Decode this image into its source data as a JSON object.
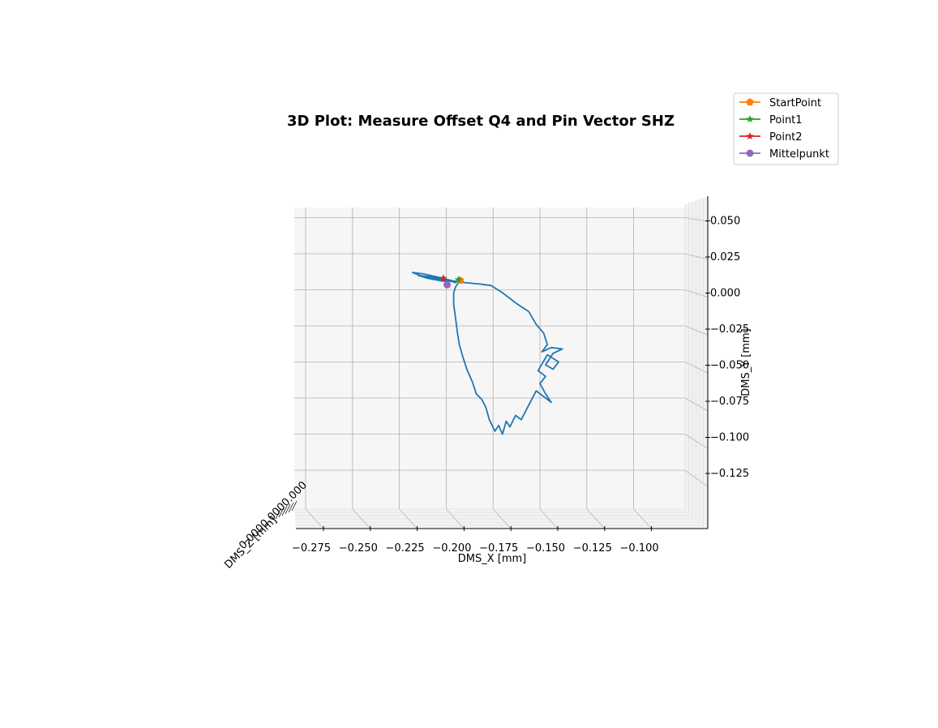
{
  "chart_data": {
    "type": "line",
    "projection": "3d",
    "title": "3D Plot: Measure Offset Q4 and Pin Vector SHZ",
    "xlabel": "DMS_X [mm]",
    "ylabel": "DMS_Y [mm]",
    "zlabel": "DMS_Z [mm]",
    "xlim": [
      -0.28,
      -0.08
    ],
    "ylim": [
      -0.145,
      0.055
    ],
    "x_ticks": [
      -0.275,
      -0.25,
      -0.225,
      -0.2,
      -0.175,
      -0.15,
      -0.125,
      -0.1
    ],
    "x_tick_labels": [
      "−0.275",
      "−0.250",
      "−0.225",
      "−0.200",
      "−0.175",
      "−0.150",
      "−0.125",
      "−0.100"
    ],
    "y_ticks": [
      0.05,
      0.025,
      0.0,
      -0.025,
      -0.05,
      -0.075,
      -0.1,
      -0.125
    ],
    "y_tick_labels": [
      "0.050",
      "0.025",
      "0.000",
      "−0.025",
      "−0.050",
      "−0.075",
      "−0.100",
      "−0.125"
    ],
    "grid": true,
    "legend_position": "top-right",
    "series": [
      {
        "name": "",
        "color": "#1f77b4",
        "x": [
          -0.196,
          -0.205,
          -0.212,
          -0.218,
          -0.214,
          -0.206,
          -0.198,
          -0.194,
          -0.19,
          -0.182,
          -0.176,
          -0.17,
          -0.166,
          -0.162,
          -0.156,
          -0.152,
          -0.148,
          -0.146,
          -0.149,
          -0.144,
          -0.138,
          -0.143,
          -0.147,
          -0.143,
          -0.14,
          -0.146,
          -0.151,
          -0.147,
          -0.15,
          -0.147,
          -0.144,
          -0.152,
          -0.158,
          -0.156,
          -0.16,
          -0.163,
          -0.166,
          -0.168,
          -0.17,
          -0.172,
          -0.174,
          -0.177,
          -0.179,
          -0.181,
          -0.184,
          -0.186,
          -0.189,
          -0.191,
          -0.193,
          -0.194,
          -0.195,
          -0.196,
          -0.196,
          -0.195,
          -0.194,
          -0.193,
          -0.195,
          -0.2,
          -0.208,
          -0.215,
          -0.21,
          -0.202,
          -0.196
        ],
        "y": [
          0.006,
          0.009,
          0.011,
          0.012,
          0.01,
          0.008,
          0.006,
          0.006,
          0.005,
          0.004,
          0.003,
          -0.002,
          -0.006,
          -0.01,
          -0.015,
          -0.024,
          -0.03,
          -0.038,
          -0.043,
          -0.04,
          -0.041,
          -0.044,
          -0.052,
          -0.055,
          -0.05,
          -0.045,
          -0.056,
          -0.06,
          -0.065,
          -0.072,
          -0.078,
          -0.07,
          -0.085,
          -0.08,
          -0.09,
          -0.087,
          -0.095,
          -0.091,
          -0.1,
          -0.094,
          -0.098,
          -0.09,
          -0.081,
          -0.076,
          -0.072,
          -0.064,
          -0.055,
          -0.047,
          -0.038,
          -0.03,
          -0.02,
          -0.01,
          -0.002,
          0.002,
          0.004,
          0.007,
          0.005,
          0.007,
          0.009,
          0.01,
          0.008,
          0.006,
          0.006
        ]
      }
    ],
    "markers": [
      {
        "name": "StartPoint",
        "color": "#ff7f0e",
        "symbol": "pentagon",
        "x": -0.1925,
        "y": 0.0065
      },
      {
        "name": "Point1",
        "color": "#2ca02c",
        "symbol": "star",
        "x": -0.1935,
        "y": 0.007
      },
      {
        "name": "Point2",
        "color": "#d62728",
        "symbol": "star",
        "x": -0.2015,
        "y": 0.008
      },
      {
        "name": "Mittelpunkt",
        "color": "#9467bd",
        "symbol": "circle",
        "x": -0.1995,
        "y": 0.0035
      }
    ]
  }
}
